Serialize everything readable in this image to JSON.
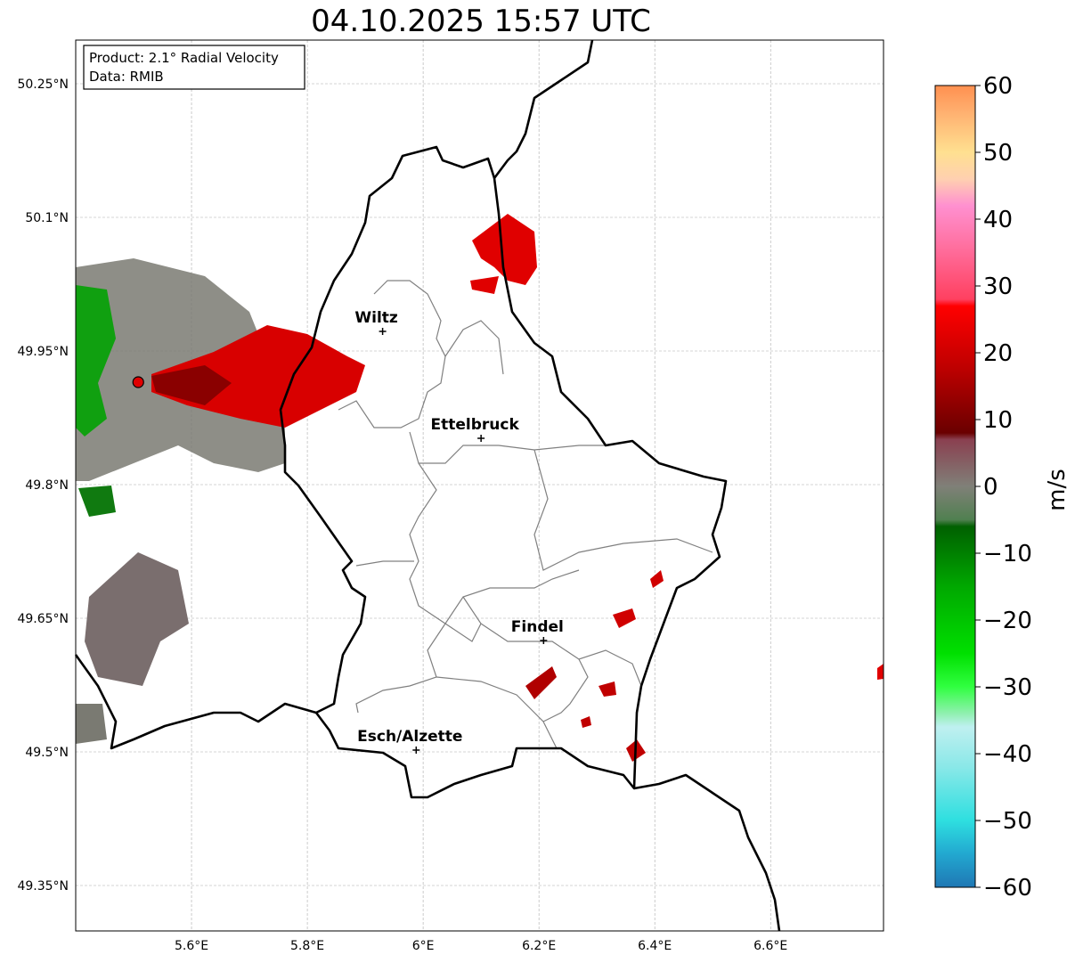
{
  "title": "04.10.2025 15:57 UTC",
  "info_box": {
    "product": "Product: 2.1° Radial Velocity",
    "data": "Data: RMIB"
  },
  "map": {
    "lon_range": [
      5.4,
      6.795
    ],
    "lat_range": [
      49.299,
      50.299
    ],
    "lon_ticks": [
      {
        "v": 5.6,
        "label": "5.6°E"
      },
      {
        "v": 5.8,
        "label": "5.8°E"
      },
      {
        "v": 6.0,
        "label": "6°E"
      },
      {
        "v": 6.2,
        "label": "6.2°E"
      },
      {
        "v": 6.4,
        "label": "6.4°E"
      },
      {
        "v": 6.6,
        "label": "6.6°E"
      }
    ],
    "lat_ticks": [
      {
        "v": 50.25,
        "label": "50.25°N"
      },
      {
        "v": 50.1,
        "label": "50.1°N"
      },
      {
        "v": 49.95,
        "label": "49.95°N"
      },
      {
        "v": 49.8,
        "label": "49.8°N"
      },
      {
        "v": 49.65,
        "label": "49.65°N"
      },
      {
        "v": 49.5,
        "label": "49.5°N"
      },
      {
        "v": 49.35,
        "label": "49.35°N"
      }
    ],
    "cities": [
      {
        "name": "Wiltz",
        "lon": 5.93,
        "lat": 49.972
      },
      {
        "name": "Ettelbruck",
        "lon": 6.1,
        "lat": 49.852
      },
      {
        "name": "Findel",
        "lon": 6.208,
        "lat": 49.625
      },
      {
        "name": "Esch/Alzette",
        "lon": 5.988,
        "lat": 49.502
      }
    ],
    "radar_site": {
      "lon": 5.508,
      "lat": 49.915,
      "color": "#e00000"
    }
  },
  "colorbar": {
    "label": "m/s",
    "range": [
      -60,
      60
    ],
    "ticks": [
      {
        "v": 60,
        "label": "60"
      },
      {
        "v": 50,
        "label": "50"
      },
      {
        "v": 40,
        "label": "40"
      },
      {
        "v": 30,
        "label": "30"
      },
      {
        "v": 20,
        "label": "20"
      },
      {
        "v": 10,
        "label": "10"
      },
      {
        "v": 0,
        "label": "0"
      },
      {
        "v": -10,
        "label": "−10"
      },
      {
        "v": -20,
        "label": "−20"
      },
      {
        "v": -30,
        "label": "−30"
      },
      {
        "v": -40,
        "label": "−40"
      },
      {
        "v": -50,
        "label": "−50"
      },
      {
        "v": -60,
        "label": "−60"
      }
    ],
    "stops": [
      {
        "v": -60,
        "c": "#1f77b4"
      },
      {
        "v": -55,
        "c": "#22a8d0"
      },
      {
        "v": -50,
        "c": "#2edfe0"
      },
      {
        "v": -42,
        "c": "#8ae8e8"
      },
      {
        "v": -36,
        "c": "#bff0f0"
      },
      {
        "v": -34,
        "c": "#90f0b0"
      },
      {
        "v": -30,
        "c": "#30ff40"
      },
      {
        "v": -25,
        "c": "#00e000"
      },
      {
        "v": -15,
        "c": "#00a800"
      },
      {
        "v": -6,
        "c": "#006000"
      },
      {
        "v": -5,
        "c": "#508050"
      },
      {
        "v": 0,
        "c": "#808078"
      },
      {
        "v": 7,
        "c": "#8a4050"
      },
      {
        "v": 8,
        "c": "#6a0000"
      },
      {
        "v": 18,
        "c": "#c00000"
      },
      {
        "v": 27,
        "c": "#ff0000"
      },
      {
        "v": 28,
        "c": "#ff4060"
      },
      {
        "v": 36,
        "c": "#ff70a0"
      },
      {
        "v": 42,
        "c": "#ff90d0"
      },
      {
        "v": 46,
        "c": "#ffd0b0"
      },
      {
        "v": 50,
        "c": "#ffe090"
      },
      {
        "v": 56,
        "c": "#ffb070"
      },
      {
        "v": 60,
        "c": "#ff9050"
      }
    ]
  }
}
